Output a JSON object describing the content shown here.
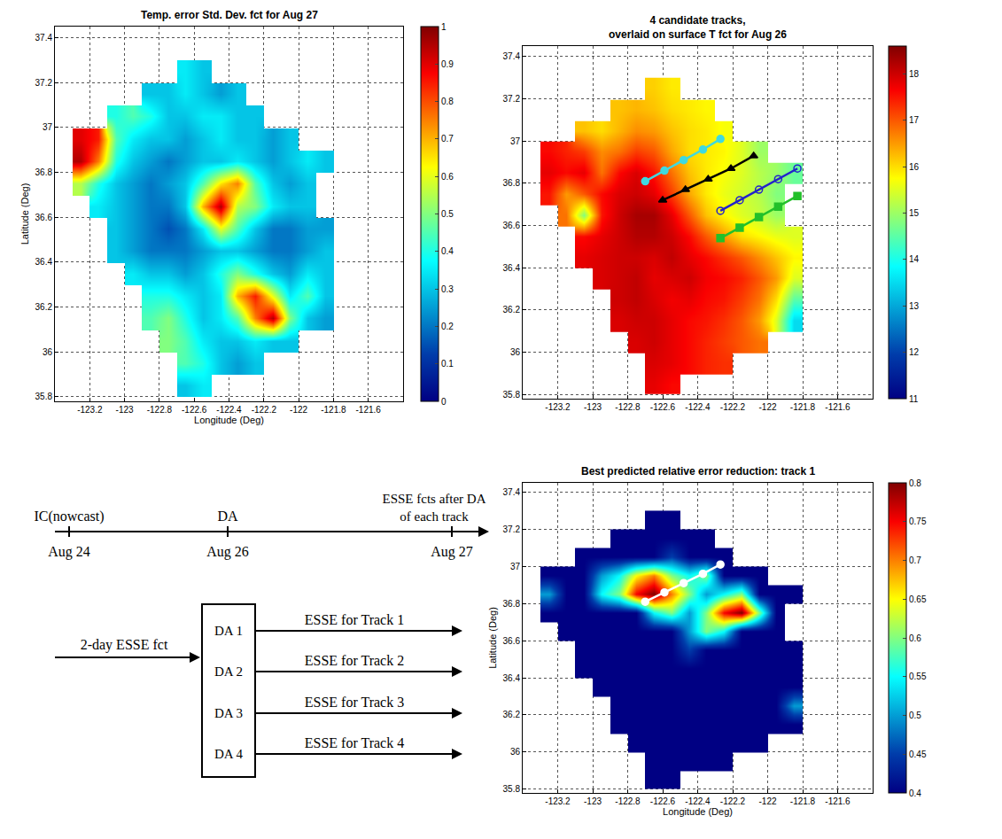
{
  "chart_data": [
    {
      "type": "heatmap",
      "title": "Temp. error Std. Dev. fct for Aug 27",
      "x_label": "Longitude (Deg)",
      "y_label": "Latitude (Deg)",
      "xlim": [
        -123.4,
        -121.4
      ],
      "ylim": [
        35.78,
        37.45
      ],
      "xticks": [
        -123.2,
        -123,
        -122.8,
        -122.6,
        -122.4,
        -122.2,
        -122,
        -121.8,
        -121.6
      ],
      "yticks": [
        35.8,
        36,
        36.2,
        36.4,
        36.6,
        36.8,
        37,
        37.2,
        37.4
      ],
      "grid": true,
      "x": [
        -123.35,
        -123.25,
        -123.15,
        -123.05,
        -122.95,
        -122.85,
        -122.75,
        -122.65,
        -122.55,
        -122.45,
        -122.35,
        -122.25,
        -122.15,
        -122.05,
        -121.95,
        -121.85,
        -121.75
      ],
      "y": [
        35.85,
        35.95,
        36.05,
        36.15,
        36.25,
        36.35,
        36.45,
        36.55,
        36.65,
        36.75,
        36.85,
        36.95,
        37.05,
        37.15,
        37.25
      ],
      "z": [
        [
          null,
          null,
          null,
          null,
          null,
          null,
          null,
          0.3,
          0.35,
          null,
          null,
          null,
          null,
          null,
          null,
          null,
          null
        ],
        [
          null,
          null,
          null,
          null,
          null,
          null,
          null,
          0.45,
          0.4,
          0.3,
          0.25,
          0.3,
          null,
          null,
          null,
          null,
          null
        ],
        [
          null,
          null,
          null,
          null,
          null,
          null,
          0.5,
          0.45,
          0.35,
          0.3,
          0.3,
          0.35,
          0.3,
          0.3,
          null,
          null,
          null
        ],
        [
          null,
          null,
          null,
          null,
          null,
          0.45,
          0.5,
          0.4,
          0.3,
          0.35,
          0.45,
          0.75,
          0.95,
          0.5,
          0.3,
          0.25,
          null
        ],
        [
          null,
          null,
          null,
          null,
          null,
          0.4,
          0.4,
          0.35,
          0.3,
          0.35,
          0.7,
          0.85,
          0.6,
          0.35,
          0.45,
          0.3,
          null
        ],
        [
          null,
          null,
          null,
          null,
          0.35,
          0.3,
          0.3,
          0.25,
          0.3,
          0.4,
          0.5,
          0.4,
          0.3,
          0.25,
          0.35,
          0.3,
          null
        ],
        [
          null,
          null,
          null,
          0.3,
          0.25,
          0.2,
          0.2,
          0.2,
          0.25,
          0.3,
          0.3,
          0.25,
          0.2,
          0.2,
          0.25,
          0.3,
          null
        ],
        [
          null,
          null,
          null,
          0.3,
          0.25,
          0.2,
          0.15,
          0.2,
          0.35,
          0.6,
          0.45,
          0.3,
          0.2,
          0.2,
          0.25,
          0.25,
          null
        ],
        [
          null,
          null,
          0.35,
          0.3,
          0.25,
          0.2,
          0.2,
          0.3,
          0.7,
          0.95,
          0.55,
          0.5,
          0.35,
          0.3,
          0.3,
          null,
          null
        ],
        [
          null,
          0.55,
          0.4,
          0.3,
          0.25,
          0.2,
          0.25,
          0.3,
          0.45,
          0.65,
          0.75,
          0.45,
          0.3,
          0.25,
          0.3,
          null,
          null
        ],
        [
          null,
          0.95,
          0.75,
          0.4,
          0.3,
          0.25,
          0.2,
          0.25,
          0.3,
          0.3,
          0.35,
          0.3,
          0.25,
          0.3,
          0.35,
          0.3,
          null
        ],
        [
          null,
          0.9,
          0.85,
          0.45,
          0.35,
          0.3,
          0.3,
          0.25,
          0.3,
          0.35,
          0.3,
          0.3,
          0.25,
          0.3,
          null,
          null,
          null
        ],
        [
          null,
          null,
          null,
          0.4,
          0.45,
          0.4,
          0.3,
          0.3,
          0.35,
          0.35,
          0.3,
          0.3,
          null,
          null,
          null,
          null,
          null
        ],
        [
          null,
          null,
          null,
          null,
          null,
          0.3,
          0.3,
          0.35,
          0.3,
          0.25,
          0.3,
          null,
          null,
          null,
          null,
          null,
          null
        ],
        [
          null,
          null,
          null,
          null,
          null,
          null,
          null,
          0.35,
          0.3,
          null,
          null,
          null,
          null,
          null,
          null,
          null,
          null
        ]
      ],
      "colorbar": {
        "range": [
          0,
          1
        ],
        "ticks": [
          0,
          0.1,
          0.2,
          0.3,
          0.4,
          0.5,
          0.6,
          0.7,
          0.8,
          0.9,
          1
        ]
      }
    },
    {
      "type": "heatmap",
      "title": [
        "4 candidate tracks,",
        "overlaid on surface T fct for Aug 26"
      ],
      "xlim": [
        -123.4,
        -121.4
      ],
      "ylim": [
        35.78,
        37.45
      ],
      "xticks": [
        -123.2,
        -123,
        -122.8,
        -122.6,
        -122.4,
        -122.2,
        -122,
        -121.8,
        -121.6
      ],
      "yticks": [
        35.8,
        36,
        36.2,
        36.4,
        36.6,
        36.8,
        37,
        37.2,
        37.4
      ],
      "grid": true,
      "x": [
        -123.35,
        -123.25,
        -123.15,
        -123.05,
        -122.95,
        -122.85,
        -122.75,
        -122.65,
        -122.55,
        -122.45,
        -122.35,
        -122.25,
        -122.15,
        -122.05,
        -121.95,
        -121.85,
        -121.75
      ],
      "y": [
        35.85,
        35.95,
        36.05,
        36.15,
        36.25,
        36.35,
        36.45,
        36.55,
        36.65,
        36.75,
        36.85,
        36.95,
        37.05,
        37.15,
        37.25
      ],
      "z": [
        [
          null,
          null,
          null,
          null,
          null,
          null,
          null,
          17.8,
          17.6,
          null,
          null,
          null,
          null,
          null,
          null,
          null,
          null
        ],
        [
          null,
          null,
          null,
          null,
          null,
          null,
          null,
          17.9,
          17.8,
          17.6,
          17.4,
          17.3,
          null,
          null,
          null,
          null,
          null
        ],
        [
          null,
          null,
          null,
          null,
          null,
          null,
          17.9,
          18.0,
          17.8,
          17.6,
          17.4,
          17.2,
          17.0,
          16.8,
          null,
          null,
          null
        ],
        [
          null,
          null,
          null,
          null,
          null,
          17.9,
          18.0,
          18.0,
          17.8,
          17.6,
          17.5,
          17.3,
          17.0,
          16.5,
          15.5,
          13.5,
          null
        ],
        [
          null,
          null,
          null,
          null,
          null,
          18.0,
          18.1,
          17.9,
          17.7,
          17.8,
          17.6,
          17.5,
          17.2,
          16.8,
          16.0,
          14.5,
          null
        ],
        [
          null,
          null,
          null,
          null,
          17.9,
          18.0,
          18.1,
          17.8,
          17.9,
          18.0,
          17.7,
          17.6,
          17.4,
          17.0,
          16.5,
          15.5,
          null
        ],
        [
          null,
          null,
          null,
          17.8,
          17.9,
          18.0,
          18.0,
          17.9,
          18.1,
          17.8,
          17.6,
          17.3,
          17.0,
          16.6,
          16.2,
          15.8,
          null
        ],
        [
          null,
          null,
          null,
          17.6,
          17.8,
          18.0,
          18.2,
          18.2,
          18.0,
          17.6,
          17.0,
          16.5,
          16.0,
          15.8,
          15.6,
          15.5,
          null
        ],
        [
          null,
          null,
          16.8,
          14.8,
          17.5,
          18.0,
          18.3,
          18.3,
          17.8,
          17.0,
          16.2,
          15.8,
          15.5,
          15.3,
          15.0,
          null,
          null
        ],
        [
          null,
          17.5,
          16.5,
          17.0,
          17.6,
          17.9,
          18.0,
          17.8,
          17.2,
          16.4,
          15.9,
          15.6,
          15.4,
          15.2,
          14.8,
          null,
          null
        ],
        [
          null,
          17.8,
          17.6,
          17.8,
          16.8,
          17.6,
          17.9,
          17.5,
          16.8,
          16.2,
          15.9,
          15.7,
          15.5,
          15.2,
          15.0,
          14.6,
          null
        ],
        [
          null,
          17.6,
          17.4,
          17.2,
          16.6,
          16.8,
          17.2,
          17.0,
          16.4,
          16.0,
          15.9,
          15.8,
          15.5,
          15.0,
          null,
          null,
          null
        ],
        [
          null,
          null,
          null,
          16.2,
          16.0,
          16.3,
          16.6,
          16.5,
          16.2,
          16.0,
          15.9,
          15.7,
          null,
          null,
          null,
          null,
          null
        ],
        [
          null,
          null,
          null,
          null,
          null,
          16.2,
          16.3,
          16.2,
          16.0,
          15.9,
          15.8,
          null,
          null,
          null,
          null,
          null,
          null
        ],
        [
          null,
          null,
          null,
          null,
          null,
          null,
          null,
          16.1,
          15.9,
          null,
          null,
          null,
          null,
          null,
          null,
          null,
          null
        ]
      ],
      "colorbar": {
        "range": [
          11,
          18.6
        ],
        "ticks": [
          11,
          12,
          13,
          14,
          15,
          16,
          17,
          18
        ]
      },
      "series": [
        {
          "type": "line",
          "color": "#3fd9e0",
          "marker": "circle",
          "x": [
            -122.7,
            -122.59,
            -122.48,
            -122.37,
            -122.27
          ],
          "values": [
            36.81,
            36.86,
            36.91,
            36.96,
            37.01
          ]
        },
        {
          "type": "line",
          "color": "#000000",
          "marker": "triangle-up",
          "x": [
            -122.6,
            -122.47,
            -122.34,
            -122.21,
            -122.08
          ],
          "values": [
            36.72,
            36.77,
            36.82,
            36.87,
            36.93
          ]
        },
        {
          "type": "line",
          "color": "#2222cc",
          "marker": "circle-open",
          "x": [
            -122.27,
            -122.16,
            -122.05,
            -121.94,
            -121.83
          ],
          "values": [
            36.67,
            36.72,
            36.77,
            36.82,
            36.87
          ]
        },
        {
          "type": "line",
          "color": "#22c02a",
          "marker": "square",
          "x": [
            -122.27,
            -122.16,
            -122.05,
            -121.94,
            -121.83
          ],
          "values": [
            36.54,
            36.59,
            36.64,
            36.69,
            36.74
          ]
        }
      ]
    },
    {
      "type": "heatmap",
      "title": "Best predicted relative error reduction: track 1",
      "x_label": "Longitude (Deg)",
      "y_label": "Latitude (Deg)",
      "xlim": [
        -123.4,
        -121.4
      ],
      "ylim": [
        35.78,
        37.45
      ],
      "xticks": [
        -123.2,
        -123,
        -122.8,
        -122.6,
        -122.4,
        -122.2,
        -122,
        -121.8,
        -121.6
      ],
      "yticks": [
        35.8,
        36,
        36.2,
        36.4,
        36.6,
        36.8,
        37,
        37.2,
        37.4
      ],
      "grid": true,
      "x": [
        -123.35,
        -123.25,
        -123.15,
        -123.05,
        -122.95,
        -122.85,
        -122.75,
        -122.65,
        -122.55,
        -122.45,
        -122.35,
        -122.25,
        -122.15,
        -122.05,
        -121.95,
        -121.85,
        -121.75
      ],
      "y": [
        35.85,
        35.95,
        36.05,
        36.15,
        36.25,
        36.35,
        36.45,
        36.55,
        36.65,
        36.75,
        36.85,
        36.95,
        37.05,
        37.15,
        37.25
      ],
      "z": [
        [
          null,
          null,
          null,
          null,
          null,
          null,
          null,
          0.4,
          0.4,
          null,
          null,
          null,
          null,
          null,
          null,
          null,
          null
        ],
        [
          null,
          null,
          null,
          null,
          null,
          null,
          null,
          0.4,
          0.4,
          0.4,
          0.4,
          0.4,
          null,
          null,
          null,
          null,
          null
        ],
        [
          null,
          null,
          null,
          null,
          null,
          null,
          0.4,
          0.4,
          0.4,
          0.4,
          0.4,
          0.4,
          0.4,
          0.4,
          null,
          null,
          null
        ],
        [
          null,
          null,
          null,
          null,
          null,
          0.4,
          0.4,
          0.4,
          0.4,
          0.4,
          0.4,
          0.4,
          0.4,
          0.4,
          0.4,
          0.4,
          null
        ],
        [
          null,
          null,
          null,
          null,
          null,
          0.4,
          0.4,
          0.4,
          0.4,
          0.4,
          0.4,
          0.4,
          0.4,
          0.4,
          0.4,
          0.5,
          null
        ],
        [
          null,
          null,
          null,
          null,
          0.4,
          0.4,
          0.4,
          0.4,
          0.4,
          0.4,
          0.4,
          0.4,
          0.4,
          0.4,
          0.4,
          0.4,
          null
        ],
        [
          null,
          null,
          null,
          0.4,
          0.4,
          0.4,
          0.4,
          0.4,
          0.4,
          0.4,
          0.4,
          0.4,
          0.4,
          0.4,
          0.4,
          0.4,
          null
        ],
        [
          null,
          null,
          null,
          0.4,
          0.4,
          0.4,
          0.4,
          0.4,
          0.4,
          0.45,
          0.4,
          0.4,
          0.4,
          0.4,
          0.4,
          0.4,
          null
        ],
        [
          null,
          null,
          0.4,
          0.4,
          0.4,
          0.4,
          0.4,
          0.4,
          0.4,
          0.5,
          0.6,
          0.55,
          0.4,
          0.4,
          0.4,
          null,
          null
        ],
        [
          null,
          0.4,
          0.4,
          0.4,
          0.4,
          0.4,
          0.4,
          0.55,
          0.6,
          0.5,
          0.6,
          0.75,
          0.8,
          0.6,
          0.4,
          null,
          null
        ],
        [
          null,
          0.5,
          0.4,
          0.4,
          0.55,
          0.6,
          0.75,
          0.8,
          0.7,
          0.6,
          0.5,
          0.55,
          0.6,
          0.4,
          0.4,
          0.4,
          null
        ],
        [
          null,
          0.4,
          0.4,
          0.4,
          0.5,
          0.55,
          0.65,
          0.7,
          0.6,
          0.55,
          0.6,
          0.4,
          0.4,
          0.4,
          null,
          null,
          null
        ],
        [
          null,
          null,
          null,
          0.4,
          0.4,
          0.4,
          0.4,
          0.4,
          0.45,
          0.4,
          0.4,
          0.4,
          null,
          null,
          null,
          null,
          null
        ],
        [
          null,
          null,
          null,
          null,
          null,
          0.4,
          0.4,
          0.4,
          0.4,
          0.4,
          0.4,
          null,
          null,
          null,
          null,
          null,
          null
        ],
        [
          null,
          null,
          null,
          null,
          null,
          null,
          null,
          0.4,
          0.4,
          null,
          null,
          null,
          null,
          null,
          null,
          null,
          null
        ]
      ],
      "colorbar": {
        "range": [
          0.4,
          0.8
        ],
        "ticks": [
          0.4,
          0.45,
          0.5,
          0.55,
          0.6,
          0.65,
          0.7,
          0.75,
          0.8
        ]
      },
      "series": [
        {
          "type": "line",
          "color": "#ffffff",
          "marker": "circle",
          "x": [
            -122.7,
            -122.59,
            -122.48,
            -122.37,
            -122.27
          ],
          "values": [
            36.81,
            36.86,
            36.91,
            36.96,
            37.01
          ]
        }
      ]
    }
  ],
  "diagram": {
    "timeline": [
      {
        "label": "IC(nowcast)",
        "date": "Aug 24"
      },
      {
        "label": "DA",
        "date": "Aug 26"
      },
      {
        "label": [
          "ESSE fcts after DA",
          "of each track"
        ],
        "date": "Aug 27"
      }
    ],
    "input": "2-day ESSE fct",
    "box": [
      "DA 1",
      "DA 2",
      "DA 3",
      "DA 4"
    ],
    "outputs": [
      "ESSE for Track 1",
      "ESSE for Track 2",
      "ESSE for Track 3",
      "ESSE for Track 4"
    ]
  }
}
